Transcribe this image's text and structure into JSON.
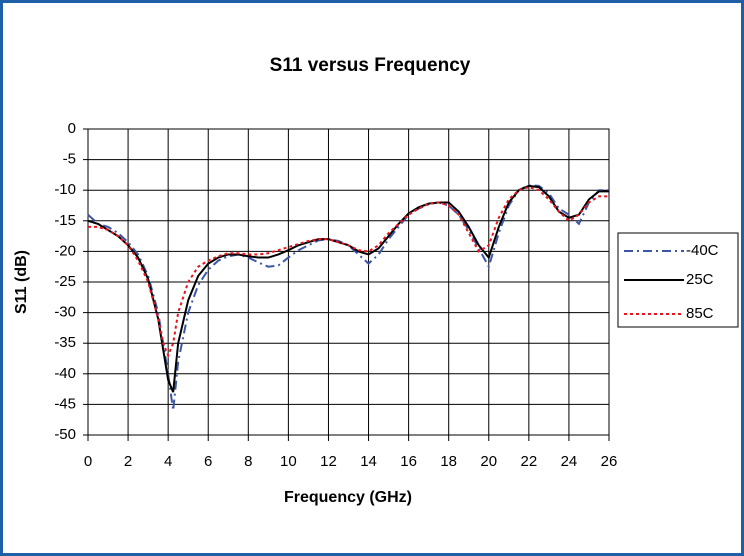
{
  "chart_data": {
    "type": "line",
    "title": "S11 versus Frequency",
    "x_label": "Frequency (GHz)",
    "y_label": "S11 (dB)",
    "x": [
      0,
      0.5,
      1,
      1.5,
      2,
      2.5,
      3,
      3.5,
      3.75,
      4,
      4.25,
      4.5,
      5,
      5.5,
      6,
      6.5,
      7,
      7.5,
      8,
      8.5,
      9,
      9.5,
      10,
      10.5,
      11,
      11.5,
      12,
      12.5,
      13,
      13.5,
      14,
      14.5,
      15,
      15.5,
      16,
      16.5,
      17,
      17.5,
      18,
      18.5,
      19,
      19.5,
      20,
      20.5,
      21,
      21.5,
      22,
      22.5,
      23,
      23.5,
      24,
      24.5,
      25,
      25.5,
      26
    ],
    "series": [
      {
        "name": "-40C",
        "color": "#3b55a8",
        "style": "dash-dot",
        "values": [
          -14,
          -15.5,
          -16,
          -17,
          -18.5,
          -20.5,
          -24,
          -30,
          -35,
          -40,
          -46,
          -38,
          -30,
          -25.5,
          -23,
          -21.5,
          -20.8,
          -20.5,
          -21,
          -21.8,
          -22.5,
          -22.3,
          -21,
          -19.8,
          -19,
          -18.2,
          -18,
          -18.3,
          -19,
          -20.5,
          -22,
          -20.5,
          -18,
          -16,
          -14,
          -13,
          -12.3,
          -12,
          -12.5,
          -14,
          -16.5,
          -19.5,
          -22.5,
          -17,
          -12.5,
          -10,
          -9.2,
          -9.3,
          -10.5,
          -13,
          -14,
          -15.5,
          -12,
          -10,
          -10
        ]
      },
      {
        "name": "25C",
        "color": "#000000",
        "style": "solid",
        "values": [
          -15,
          -15.5,
          -16.5,
          -17.5,
          -19,
          -21,
          -24.5,
          -31,
          -36,
          -41,
          -43,
          -35,
          -28,
          -24,
          -22,
          -21,
          -20.5,
          -20.5,
          -20.8,
          -21,
          -21,
          -20.5,
          -19.8,
          -19,
          -18.5,
          -18,
          -18,
          -18.5,
          -19,
          -20,
          -20.5,
          -19.5,
          -17.5,
          -15.5,
          -13.8,
          -12.8,
          -12.2,
          -12,
          -12,
          -13.5,
          -16,
          -19,
          -21,
          -16,
          -12,
          -10,
          -9.3,
          -9.5,
          -11,
          -13.5,
          -14.5,
          -14,
          -11.5,
          -10.2,
          -10.2
        ]
      },
      {
        "name": "85C",
        "color": "#e8141c",
        "style": "dotted",
        "values": [
          -16,
          -16,
          -16.5,
          -17.5,
          -19,
          -21.5,
          -25,
          -31,
          -35,
          -37,
          -35,
          -30,
          -25,
          -22.5,
          -21.5,
          -20.8,
          -20.3,
          -20.3,
          -20.5,
          -20.5,
          -20.3,
          -19.8,
          -19.3,
          -18.8,
          -18.3,
          -18,
          -18,
          -18.5,
          -19,
          -19.8,
          -20,
          -19,
          -17,
          -15.5,
          -14,
          -13,
          -12.2,
          -12,
          -12.5,
          -14,
          -17,
          -20,
          -19,
          -14.5,
          -11.5,
          -10,
          -9.5,
          -10,
          -11.5,
          -13.5,
          -15,
          -14,
          -12,
          -11,
          -11
        ]
      }
    ],
    "xlim": [
      0,
      26
    ],
    "xticks": [
      0,
      2,
      4,
      6,
      8,
      10,
      12,
      14,
      16,
      18,
      20,
      22,
      24,
      26
    ],
    "ylim": [
      -50,
      0
    ],
    "yticks": [
      0,
      -5,
      -10,
      -15,
      -20,
      -25,
      -30,
      -35,
      -40,
      -45,
      -50
    ],
    "grid": true,
    "legend": "right"
  }
}
